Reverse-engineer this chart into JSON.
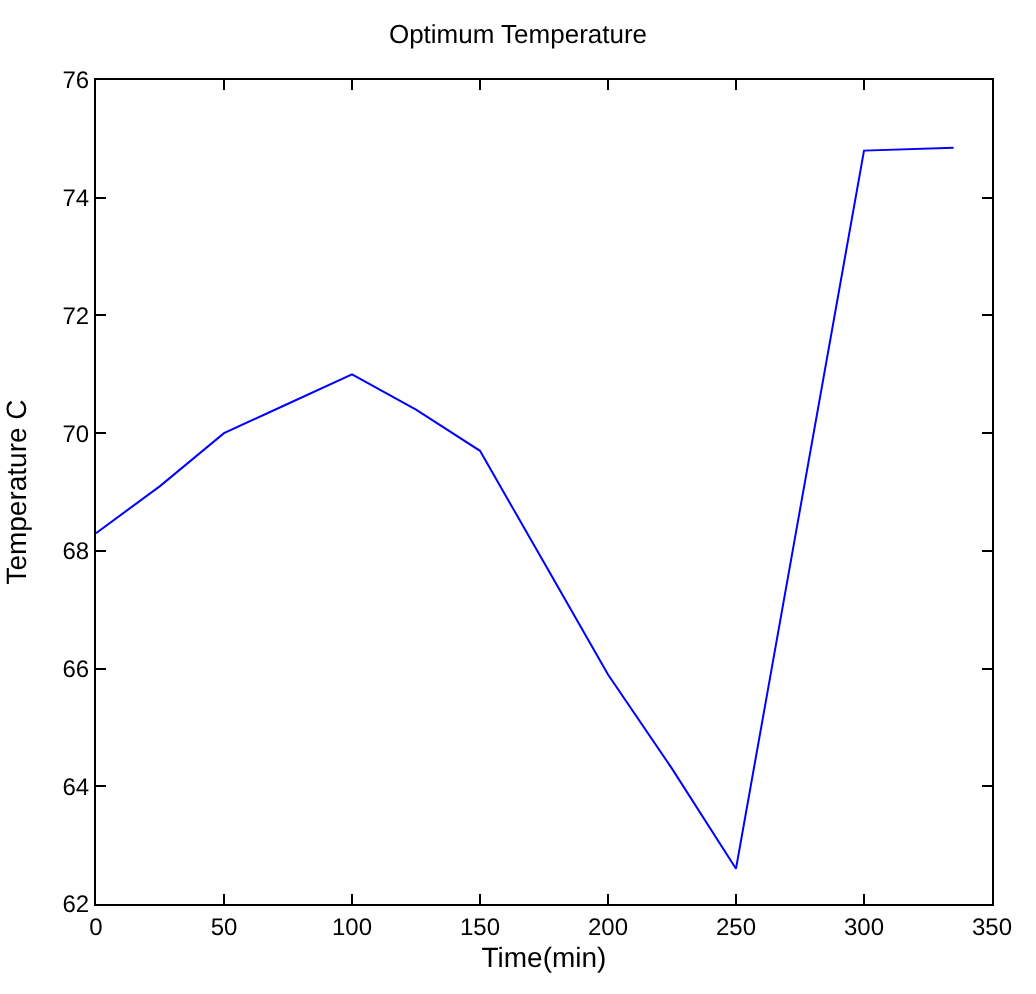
{
  "chart_data": {
    "type": "line",
    "title": "Optimum Temperature",
    "xlabel": "Time(min)",
    "ylabel": "Temperature C",
    "x": [
      0,
      25,
      50,
      75,
      100,
      125,
      150,
      175,
      200,
      225,
      250,
      275,
      300,
      335
    ],
    "series": [
      {
        "color": "#0000ff",
        "values": [
          68.3,
          69.1,
          70.0,
          70.5,
          71.0,
          70.4,
          69.7,
          67.8,
          65.9,
          64.3,
          62.6,
          68.7,
          74.8,
          74.85
        ]
      }
    ],
    "xlim": [
      0,
      350
    ],
    "xticks": [
      0,
      50,
      100,
      150,
      200,
      250,
      300,
      350
    ],
    "ylim": [
      62,
      76
    ],
    "yticks": [
      62,
      64,
      66,
      68,
      70,
      72,
      74,
      76
    ],
    "grid": false,
    "marker": "none",
    "line_style": "solid"
  }
}
